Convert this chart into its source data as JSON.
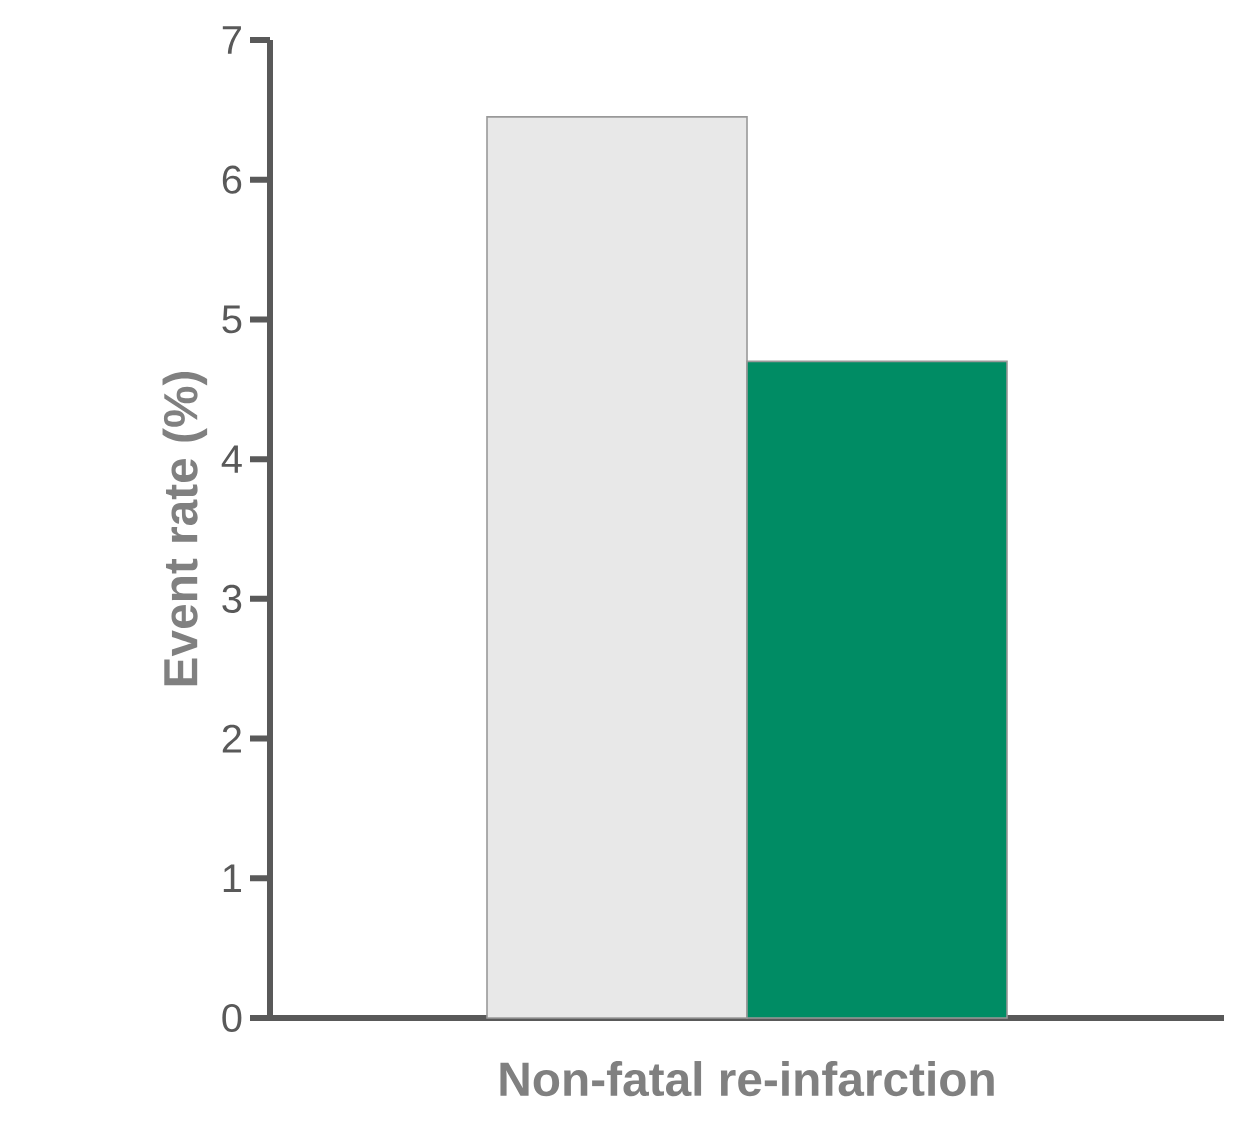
{
  "chart_data": {
    "type": "bar",
    "ylabel": "Event rate (%)",
    "categories": [
      "Non-fatal re-infarction"
    ],
    "series": [
      {
        "color": "#e8e8e8",
        "values": [
          6.45
        ]
      },
      {
        "color": "#008c64",
        "values": [
          4.7
        ]
      }
    ],
    "ylim": [
      0,
      7
    ],
    "yticks": [
      0,
      1,
      2,
      3,
      4,
      5,
      6,
      7
    ],
    "grid": false
  }
}
